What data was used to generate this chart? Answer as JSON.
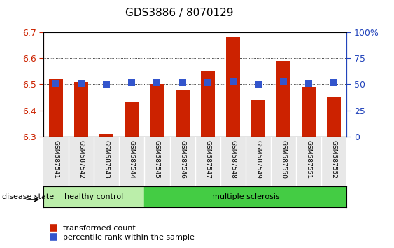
{
  "title": "GDS3886 / 8070129",
  "samples": [
    "GSM587541",
    "GSM587542",
    "GSM587543",
    "GSM587544",
    "GSM587545",
    "GSM587546",
    "GSM587547",
    "GSM587548",
    "GSM587549",
    "GSM587550",
    "GSM587551",
    "GSM587552"
  ],
  "bar_values": [
    6.52,
    6.51,
    6.31,
    6.43,
    6.5,
    6.48,
    6.55,
    6.68,
    6.44,
    6.59,
    6.49,
    6.45
  ],
  "percentile_values": [
    51.0,
    51.0,
    50.0,
    51.5,
    51.5,
    51.5,
    51.5,
    53.0,
    50.5,
    52.5,
    51.0,
    51.5
  ],
  "bar_bottom": 6.3,
  "ylim": [
    6.3,
    6.7
  ],
  "yticks": [
    6.3,
    6.4,
    6.5,
    6.6,
    6.7
  ],
  "y2lim": [
    0,
    100
  ],
  "y2ticks": [
    0,
    25,
    50,
    75,
    100
  ],
  "y2labels": [
    "0",
    "25",
    "50",
    "75",
    "100%"
  ],
  "bar_color": "#cc2200",
  "percentile_color": "#3355cc",
  "healthy_color": "#bbeeaa",
  "ms_color": "#44cc44",
  "healthy_label": "healthy control",
  "ms_label": "multiple sclerosis",
  "n_healthy": 4,
  "disease_state_label": "disease state",
  "legend_bar_label": "transformed count",
  "legend_pct_label": "percentile rank within the sample",
  "axis_color_left": "#cc2200",
  "axis_color_right": "#2244bb",
  "bar_width": 0.55,
  "percentile_marker_size": 7,
  "bg_color": "#e8e8e8"
}
